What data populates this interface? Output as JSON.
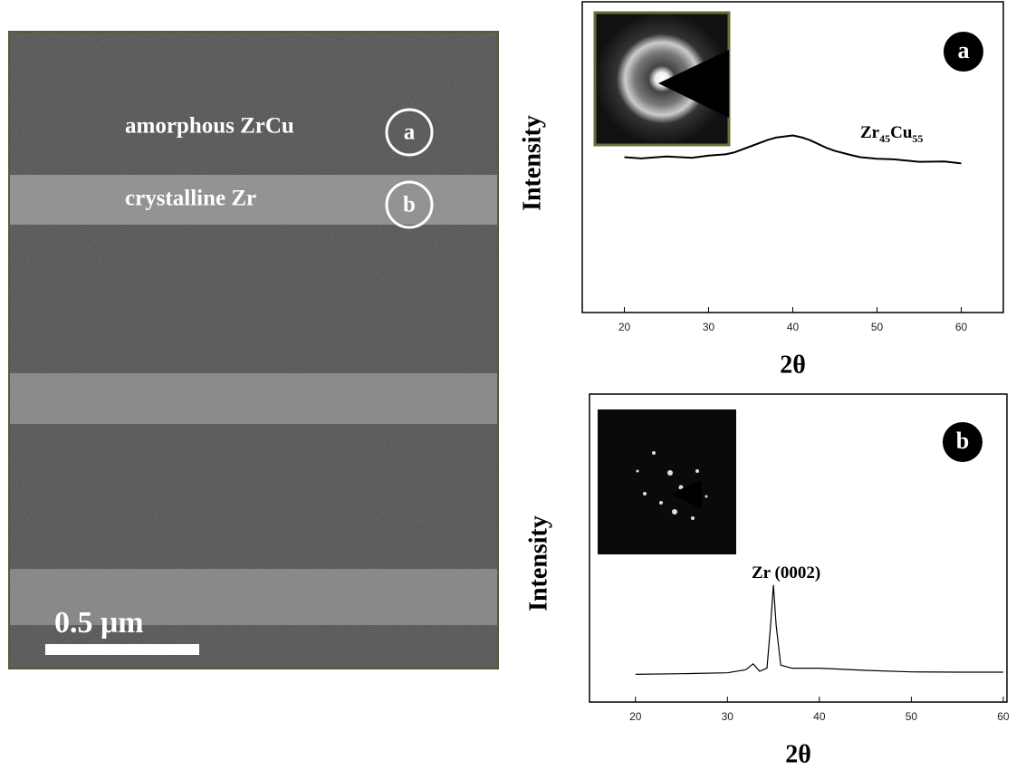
{
  "micrograph": {
    "label_a": "amorphous ZrCu",
    "badge_a": "a",
    "label_b": "crystalline Zr",
    "badge_b": "b",
    "scale_bar": "0.5 μm"
  },
  "chart_data": [
    {
      "type": "line",
      "badge": "a",
      "xlabel": "2θ",
      "ylabel": "Intensity",
      "annotation": [
        "Zr",
        "45",
        "Cu",
        "55"
      ],
      "x": [
        20,
        22,
        25,
        28,
        30,
        32,
        33,
        35,
        37,
        38,
        40,
        41,
        42,
        44,
        45,
        47,
        48,
        50,
        52,
        55,
        58,
        60
      ],
      "series": [
        {
          "color": "#000000",
          "values": [
            50,
            49.6,
            50.2,
            49.8,
            50.5,
            50.9,
            51.5,
            53.5,
            55.5,
            56.3,
            57,
            56.4,
            55.5,
            53,
            52,
            50.6,
            50,
            49.5,
            49.3,
            48.5,
            48.6,
            48
          ]
        }
      ],
      "xlim": [
        15,
        65
      ],
      "xticks": [
        20,
        30,
        40,
        50,
        60
      ],
      "ylim": [
        0,
        100
      ]
    },
    {
      "type": "line",
      "badge": "b",
      "xlabel": "2θ",
      "ylabel": "Intensity",
      "annotation": [
        "Zr (0002)"
      ],
      "x": [
        20,
        25,
        30,
        32,
        32.8,
        33.5,
        34.3,
        34.7,
        35,
        35.3,
        35.8,
        37,
        40,
        45,
        50,
        55,
        60
      ],
      "series": [
        {
          "color": "#000000",
          "values": [
            9,
            9.2,
            9.5,
            10.5,
            12.4,
            10,
            11,
            25,
            38,
            25,
            12,
            11,
            11,
            10.3,
            9.8,
            9.7,
            9.7
          ]
        }
      ],
      "xlim": [
        15,
        60.4
      ],
      "xticks": [
        20,
        30,
        40,
        50,
        60
      ],
      "ylim": [
        0,
        100
      ]
    }
  ]
}
